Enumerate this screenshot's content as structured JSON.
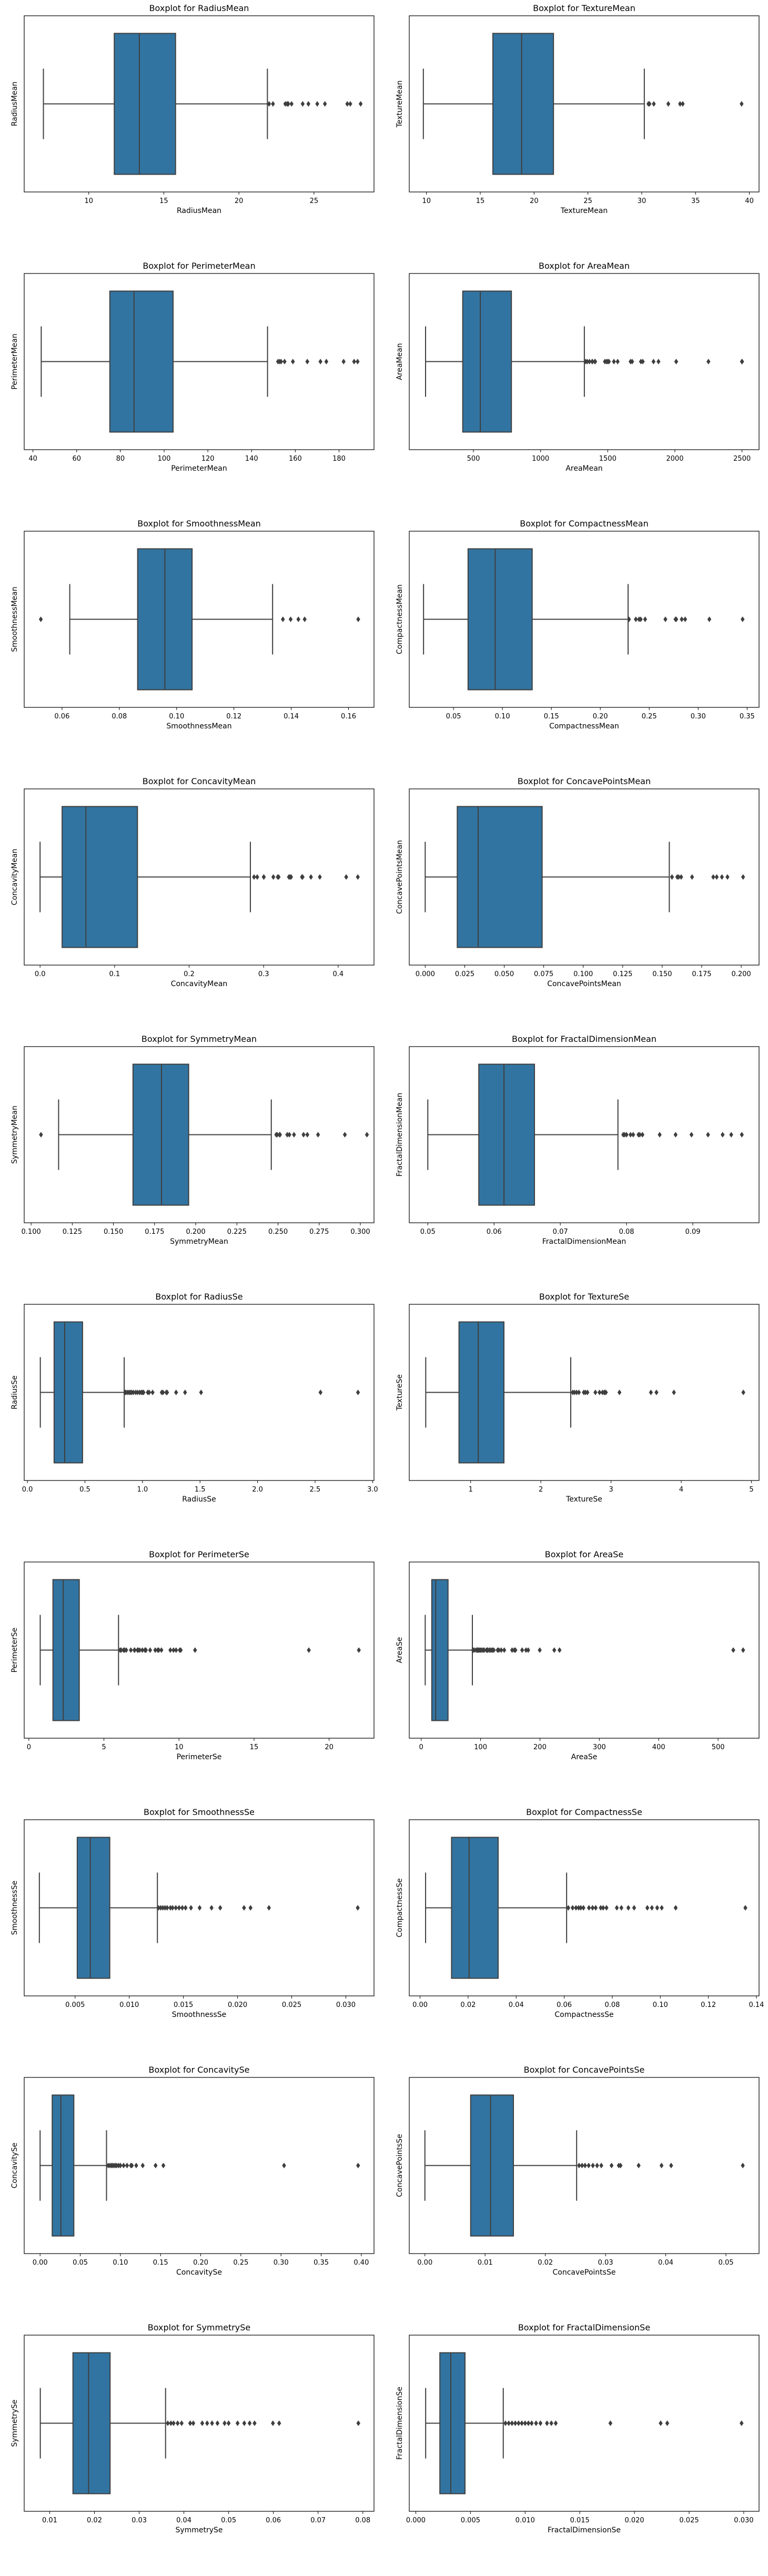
{
  "chart_data": [
    {
      "type": "boxplot",
      "title": "Boxplot for RadiusMean",
      "xlabel": "RadiusMean",
      "ylabel": "RadiusMean",
      "xlim": [
        5.7,
        29.0
      ],
      "xticks": [
        10,
        15,
        20,
        25
      ],
      "box": {
        "whislo": 6.98,
        "q1": 11.7,
        "median": 13.37,
        "q3": 15.78,
        "whishi": 21.9
      },
      "outliers": [
        22.01,
        22.27,
        23.09,
        23.21,
        23.27,
        23.29,
        23.51,
        24.25,
        24.63,
        25.22,
        25.73,
        27.22,
        27.42,
        28.11
      ]
    },
    {
      "type": "boxplot",
      "title": "Boxplot for TextureMean",
      "xlabel": "TextureMean",
      "ylabel": "TextureMean",
      "xlim": [
        8.4,
        40.9
      ],
      "xticks": [
        10,
        15,
        20,
        25,
        30,
        35,
        40
      ],
      "box": {
        "whislo": 9.71,
        "q1": 16.17,
        "median": 18.84,
        "q3": 21.8,
        "whishi": 30.24
      },
      "outliers": [
        30.62,
        30.72,
        31.12,
        32.47,
        33.56,
        33.81,
        39.28
      ]
    },
    {
      "type": "boxplot",
      "title": "Boxplot for PerimeterMean",
      "xlabel": "PerimeterMean",
      "ylabel": "PerimeterMean",
      "xlim": [
        36.0,
        196.0
      ],
      "xticks": [
        40,
        60,
        80,
        100,
        120,
        140,
        160,
        180
      ],
      "box": {
        "whislo": 43.79,
        "q1": 75.17,
        "median": 86.24,
        "q3": 104.1,
        "whishi": 147.3
      },
      "outliers": [
        152.1,
        152.8,
        153.5,
        155.1,
        158.9,
        165.5,
        171.5,
        174.2,
        182.1,
        186.9,
        188.5
      ]
    },
    {
      "type": "boxplot",
      "title": "Boxplot for AreaMean",
      "xlabel": "AreaMean",
      "ylabel": "AreaMean",
      "xlim": [
        22,
        2627
      ],
      "xticks": [
        500,
        1000,
        1500,
        2000,
        2500
      ],
      "box": {
        "whislo": 143.5,
        "q1": 420.3,
        "median": 551.1,
        "q3": 782.7,
        "whishi": 1326
      },
      "outliers": [
        1335,
        1347,
        1364,
        1384,
        1386,
        1404,
        1407,
        1479,
        1491,
        1500,
        1509,
        1546,
        1574,
        1670,
        1682,
        1747,
        1761,
        1841,
        1878,
        2010,
        2250,
        2499,
        2501
      ]
    },
    {
      "type": "boxplot",
      "title": "Boxplot for SmoothnessMean",
      "xlabel": "SmoothnessMean",
      "ylabel": "SmoothnessMean",
      "xlim": [
        0.0468,
        0.1689
      ],
      "xticks": [
        0.06,
        0.08,
        0.1,
        0.12,
        0.14,
        0.16
      ],
      "box": {
        "whislo": 0.0627,
        "q1": 0.0864,
        "median": 0.0959,
        "q3": 0.1054,
        "whishi": 0.1335
      },
      "outliers": [
        0.0526,
        0.1371,
        0.1398,
        0.1425,
        0.1447,
        0.1634
      ]
    },
    {
      "type": "boxplot",
      "title": "Boxplot for CompactnessMean",
      "xlabel": "CompactnessMean",
      "ylabel": "CompactnessMean",
      "xlim": [
        0.0048,
        0.3622
      ],
      "xticks": [
        0.05,
        0.1,
        0.15,
        0.2,
        0.25,
        0.3,
        0.35
      ],
      "box": {
        "whislo": 0.0194,
        "q1": 0.0649,
        "median": 0.0926,
        "q3": 0.1304,
        "whishi": 0.2284
      },
      "outliers": [
        0.2293,
        0.2363,
        0.2396,
        0.2413,
        0.2458,
        0.2665,
        0.2768,
        0.2776,
        0.2832,
        0.2867,
        0.3114,
        0.3454
      ]
    },
    {
      "type": "boxplot",
      "title": "Boxplot for ConcavityMean",
      "xlabel": "ConcavityMean",
      "ylabel": "ConcavityMean",
      "xlim": [
        -0.0213,
        0.4481
      ],
      "xticks": [
        0.0,
        0.1,
        0.2,
        0.3,
        0.4
      ],
      "box": {
        "whislo": 0.0,
        "q1": 0.0296,
        "median": 0.0615,
        "q3": 0.1307,
        "whishi": 0.2822
      },
      "outliers": [
        0.2871,
        0.2914,
        0.3001,
        0.3003,
        0.313,
        0.3189,
        0.3201,
        0.3339,
        0.3354,
        0.3368,
        0.3514,
        0.3523,
        0.3635,
        0.3754,
        0.4108,
        0.4264
      ]
    },
    {
      "type": "boxplot",
      "title": "Boxplot for ConcavePointsMean",
      "xlabel": "ConcavePointsMean",
      "ylabel": "ConcavePointsMean",
      "xlim": [
        -0.0101,
        0.2113
      ],
      "xticks": [
        0.0,
        0.025,
        0.05,
        0.075,
        0.1,
        0.125,
        0.15,
        0.175,
        0.2
      ],
      "box": {
        "whislo": 0.0,
        "q1": 0.0203,
        "median": 0.0335,
        "q3": 0.074,
        "whishi": 0.1545
      },
      "outliers": [
        0.1562,
        0.1595,
        0.1604,
        0.162,
        0.1689,
        0.1823,
        0.1845,
        0.1878,
        0.1913,
        0.2012
      ]
    },
    {
      "type": "boxplot",
      "title": "Boxplot for SymmetryMean",
      "xlabel": "SymmetryMean",
      "ylabel": "SymmetryMean",
      "xlim": [
        0.0958,
        0.3083
      ],
      "xticks": [
        0.1,
        0.125,
        0.15,
        0.175,
        0.2,
        0.225,
        0.25,
        0.275,
        0.3
      ],
      "box": {
        "whislo": 0.1167,
        "q1": 0.1619,
        "median": 0.1792,
        "q3": 0.1957,
        "whishi": 0.2459
      },
      "outliers": [
        0.106,
        0.2489,
        0.2495,
        0.2509,
        0.2512,
        0.2556,
        0.2569,
        0.2597,
        0.2655,
        0.2678,
        0.2743,
        0.2906,
        0.304
      ]
    },
    {
      "type": "boxplot",
      "title": "Boxplot for FractalDimensionMean",
      "xlabel": "FractalDimensionMean",
      "ylabel": "FractalDimensionMean",
      "xlim": [
        0.0472,
        0.1
      ],
      "xticks": [
        0.05,
        0.06,
        0.07,
        0.08,
        0.09
      ],
      "box": {
        "whislo": 0.05,
        "q1": 0.0577,
        "median": 0.0615,
        "q3": 0.0661,
        "whishi": 0.0787
      },
      "outliers": [
        0.0795,
        0.0797,
        0.08,
        0.0806,
        0.081,
        0.0818,
        0.082,
        0.0824,
        0.085,
        0.0874,
        0.0898,
        0.0923,
        0.0945,
        0.0958,
        0.0974
      ]
    },
    {
      "type": "boxplot",
      "title": "Boxplot for RadiusSe",
      "xlabel": "RadiusSe",
      "ylabel": "RadiusSe",
      "xlim": [
        -0.028,
        3.012
      ],
      "xticks": [
        0.0,
        0.5,
        1.0,
        1.5,
        2.0,
        2.5,
        3.0
      ],
      "box": {
        "whislo": 0.112,
        "q1": 0.232,
        "median": 0.324,
        "q3": 0.479,
        "whishi": 0.841
      },
      "outliers": [
        0.849,
        0.856,
        0.871,
        0.884,
        0.895,
        0.906,
        0.921,
        0.941,
        0.957,
        0.975,
        0.99,
        1.0,
        1.009,
        1.046,
        1.058,
        1.088,
        1.167,
        1.178,
        1.207,
        1.214,
        1.292,
        1.37,
        1.509,
        2.547,
        2.873
      ]
    },
    {
      "type": "boxplot",
      "title": "Boxplot for TextureSe",
      "xlabel": "TextureSe",
      "ylabel": "TextureSe",
      "xlim": [
        0.125,
        5.109
      ],
      "xticks": [
        1,
        2,
        3,
        4,
        5
      ],
      "box": {
        "whislo": 0.36,
        "q1": 0.834,
        "median": 1.108,
        "q3": 1.474,
        "whishi": 2.426
      },
      "outliers": [
        2.454,
        2.478,
        2.509,
        2.542,
        2.612,
        2.635,
        2.664,
        2.777,
        2.836,
        2.878,
        2.904,
        2.91,
        2.927,
        3.12,
        3.568,
        3.647,
        3.896,
        4.885
      ]
    },
    {
      "type": "boxplot",
      "title": "Boxplot for PerimeterSe",
      "xlabel": "PerimeterSe",
      "ylabel": "PerimeterSe",
      "xlim": [
        -0.31,
        22.99
      ],
      "xticks": [
        0,
        5,
        10,
        15,
        20
      ],
      "box": {
        "whislo": 0.757,
        "q1": 1.606,
        "median": 2.287,
        "q3": 3.357,
        "whishi": 5.973
      },
      "outliers": [
        6.076,
        6.146,
        6.311,
        6.372,
        6.487,
        6.794,
        7.029,
        7.05,
        7.237,
        7.276,
        7.382,
        7.561,
        7.733,
        7.749,
        7.8,
        8.077,
        8.419,
        8.589,
        8.649,
        8.83,
        9.424,
        9.635,
        9.807,
        10.05,
        10.12,
        11.07,
        18.65,
        21.98
      ]
    },
    {
      "type": "boxplot",
      "title": "Boxplot for AreaSe",
      "xlabel": "AreaSe",
      "ylabel": "AreaSe",
      "xlim": [
        -20.1,
        569.0
      ],
      "xticks": [
        0,
        100,
        200,
        300,
        400,
        500
      ],
      "box": {
        "whislo": 6.802,
        "q1": 17.85,
        "median": 24.53,
        "q3": 45.19,
        "whishi": 86.2
      },
      "outliers": [
        87.17,
        87.78,
        90.47,
        93.54,
        93.99,
        94.03,
        94.44,
        96.05,
        97.07,
        98.81,
        100.4,
        102.6,
        104.9,
        106.0,
        109.9,
        111.4,
        112.4,
        115.2,
        116.2,
        118.8,
        120.0,
        122.3,
        128.7,
        130.8,
        134.8,
        139.9,
        153.1,
        156.8,
        158.7,
        170.0,
        176.5,
        180.2,
        199.7,
        224.1,
        233.0,
        525.6,
        542.2
      ]
    },
    {
      "type": "boxplot",
      "title": "Boxplot for SmoothnessSe",
      "xlabel": "SmoothnessSe",
      "ylabel": "SmoothnessSe",
      "xlim": [
        0.0003,
        0.0326
      ],
      "xticks": [
        0.005,
        0.01,
        0.015,
        0.02,
        0.025,
        0.03
      ],
      "box": {
        "whislo": 0.0017,
        "q1": 0.0052,
        "median": 0.0064,
        "q3": 0.0082,
        "whishi": 0.0126
      },
      "outliers": [
        0.0127,
        0.0129,
        0.0131,
        0.0133,
        0.0135,
        0.0138,
        0.014,
        0.0143,
        0.0146,
        0.0149,
        0.0152,
        0.0157,
        0.0165,
        0.0176,
        0.0184,
        0.0206,
        0.0212,
        0.0229,
        0.0311
      ]
    },
    {
      "type": "boxplot",
      "title": "Boxplot for CompactnessSe",
      "xlabel": "CompactnessSe",
      "ylabel": "CompactnessSe",
      "xlim": [
        -0.0045,
        0.1411
      ],
      "xticks": [
        0.0,
        0.02,
        0.04,
        0.06,
        0.08,
        0.1,
        0.12,
        0.14
      ],
      "box": {
        "whislo": 0.0023,
        "q1": 0.0131,
        "median": 0.0204,
        "q3": 0.0325,
        "whishi": 0.061
      },
      "outliers": [
        0.0617,
        0.0635,
        0.0649,
        0.066,
        0.0669,
        0.068,
        0.0703,
        0.0718,
        0.0731,
        0.0752,
        0.0762,
        0.0776,
        0.0819,
        0.0838,
        0.0867,
        0.0891,
        0.0946,
        0.0965,
        0.0987,
        0.1006,
        0.1064,
        0.1354
      ]
    },
    {
      "type": "boxplot",
      "title": "Boxplot for ConcavitySe",
      "xlabel": "ConcavitySe",
      "ylabel": "ConcavitySe",
      "xlim": [
        -0.0198,
        0.4158
      ],
      "xticks": [
        0.0,
        0.05,
        0.1,
        0.15,
        0.2,
        0.25,
        0.3,
        0.35,
        0.4
      ],
      "box": {
        "whislo": 0.0,
        "q1": 0.0151,
        "median": 0.0259,
        "q3": 0.042,
        "whishi": 0.0827
      },
      "outliers": [
        0.0848,
        0.0869,
        0.0889,
        0.09,
        0.0919,
        0.0936,
        0.0953,
        0.0977,
        0.1,
        0.104,
        0.1083,
        0.1131,
        0.1143,
        0.1197,
        0.1278,
        0.1438,
        0.1535,
        0.3038,
        0.396
      ]
    },
    {
      "type": "boxplot",
      "title": "Boxplot for ConcavePointsSe",
      "xlabel": "ConcavePointsSe",
      "ylabel": "ConcavePointsSe",
      "xlim": [
        -0.0026,
        0.0555
      ],
      "xticks": [
        0.0,
        0.01,
        0.02,
        0.03,
        0.04,
        0.05
      ],
      "box": {
        "whislo": 0.0,
        "q1": 0.0076,
        "median": 0.0109,
        "q3": 0.0147,
        "whishi": 0.0252
      },
      "outliers": [
        0.0256,
        0.0261,
        0.0266,
        0.0272,
        0.0279,
        0.0286,
        0.0293,
        0.031,
        0.0322,
        0.0325,
        0.0355,
        0.0393,
        0.0409,
        0.0528
      ]
    },
    {
      "type": "boxplot",
      "title": "Boxplot for SymmetrySe",
      "xlabel": "SymmetrySe",
      "ylabel": "SymmetrySe",
      "xlim": [
        0.0043,
        0.0825
      ],
      "xticks": [
        0.01,
        0.02,
        0.03,
        0.04,
        0.05,
        0.06,
        0.07,
        0.08
      ],
      "box": {
        "whislo": 0.0079,
        "q1": 0.0152,
        "median": 0.0187,
        "q3": 0.0235,
        "whishi": 0.0359
      },
      "outliers": [
        0.0364,
        0.0371,
        0.0377,
        0.0386,
        0.0395,
        0.0414,
        0.0421,
        0.0441,
        0.0452,
        0.0463,
        0.0475,
        0.0491,
        0.05,
        0.052,
        0.0535,
        0.0547,
        0.0558,
        0.0599,
        0.0613,
        0.079
      ]
    },
    {
      "type": "boxplot",
      "title": "Boxplot for FractalDimensionSe",
      "xlabel": "FractalDimensionSe",
      "ylabel": "FractalDimensionSe",
      "xlim": [
        -0.0006,
        0.0314
      ],
      "xticks": [
        0.0,
        0.005,
        0.01,
        0.015,
        0.02,
        0.025,
        0.03
      ],
      "box": {
        "whislo": 0.0009,
        "q1": 0.0022,
        "median": 0.0032,
        "q3": 0.0045,
        "whishi": 0.008
      },
      "outliers": [
        0.0082,
        0.0085,
        0.0088,
        0.0091,
        0.0094,
        0.0097,
        0.01,
        0.0103,
        0.0106,
        0.011,
        0.0114,
        0.012,
        0.0124,
        0.0128,
        0.0178,
        0.0224,
        0.023,
        0.0298
      ]
    }
  ],
  "style": {
    "box_fill": "#3274a1",
    "line": "#3f3f3f",
    "frame": "#000000",
    "background": "#ffffff"
  }
}
